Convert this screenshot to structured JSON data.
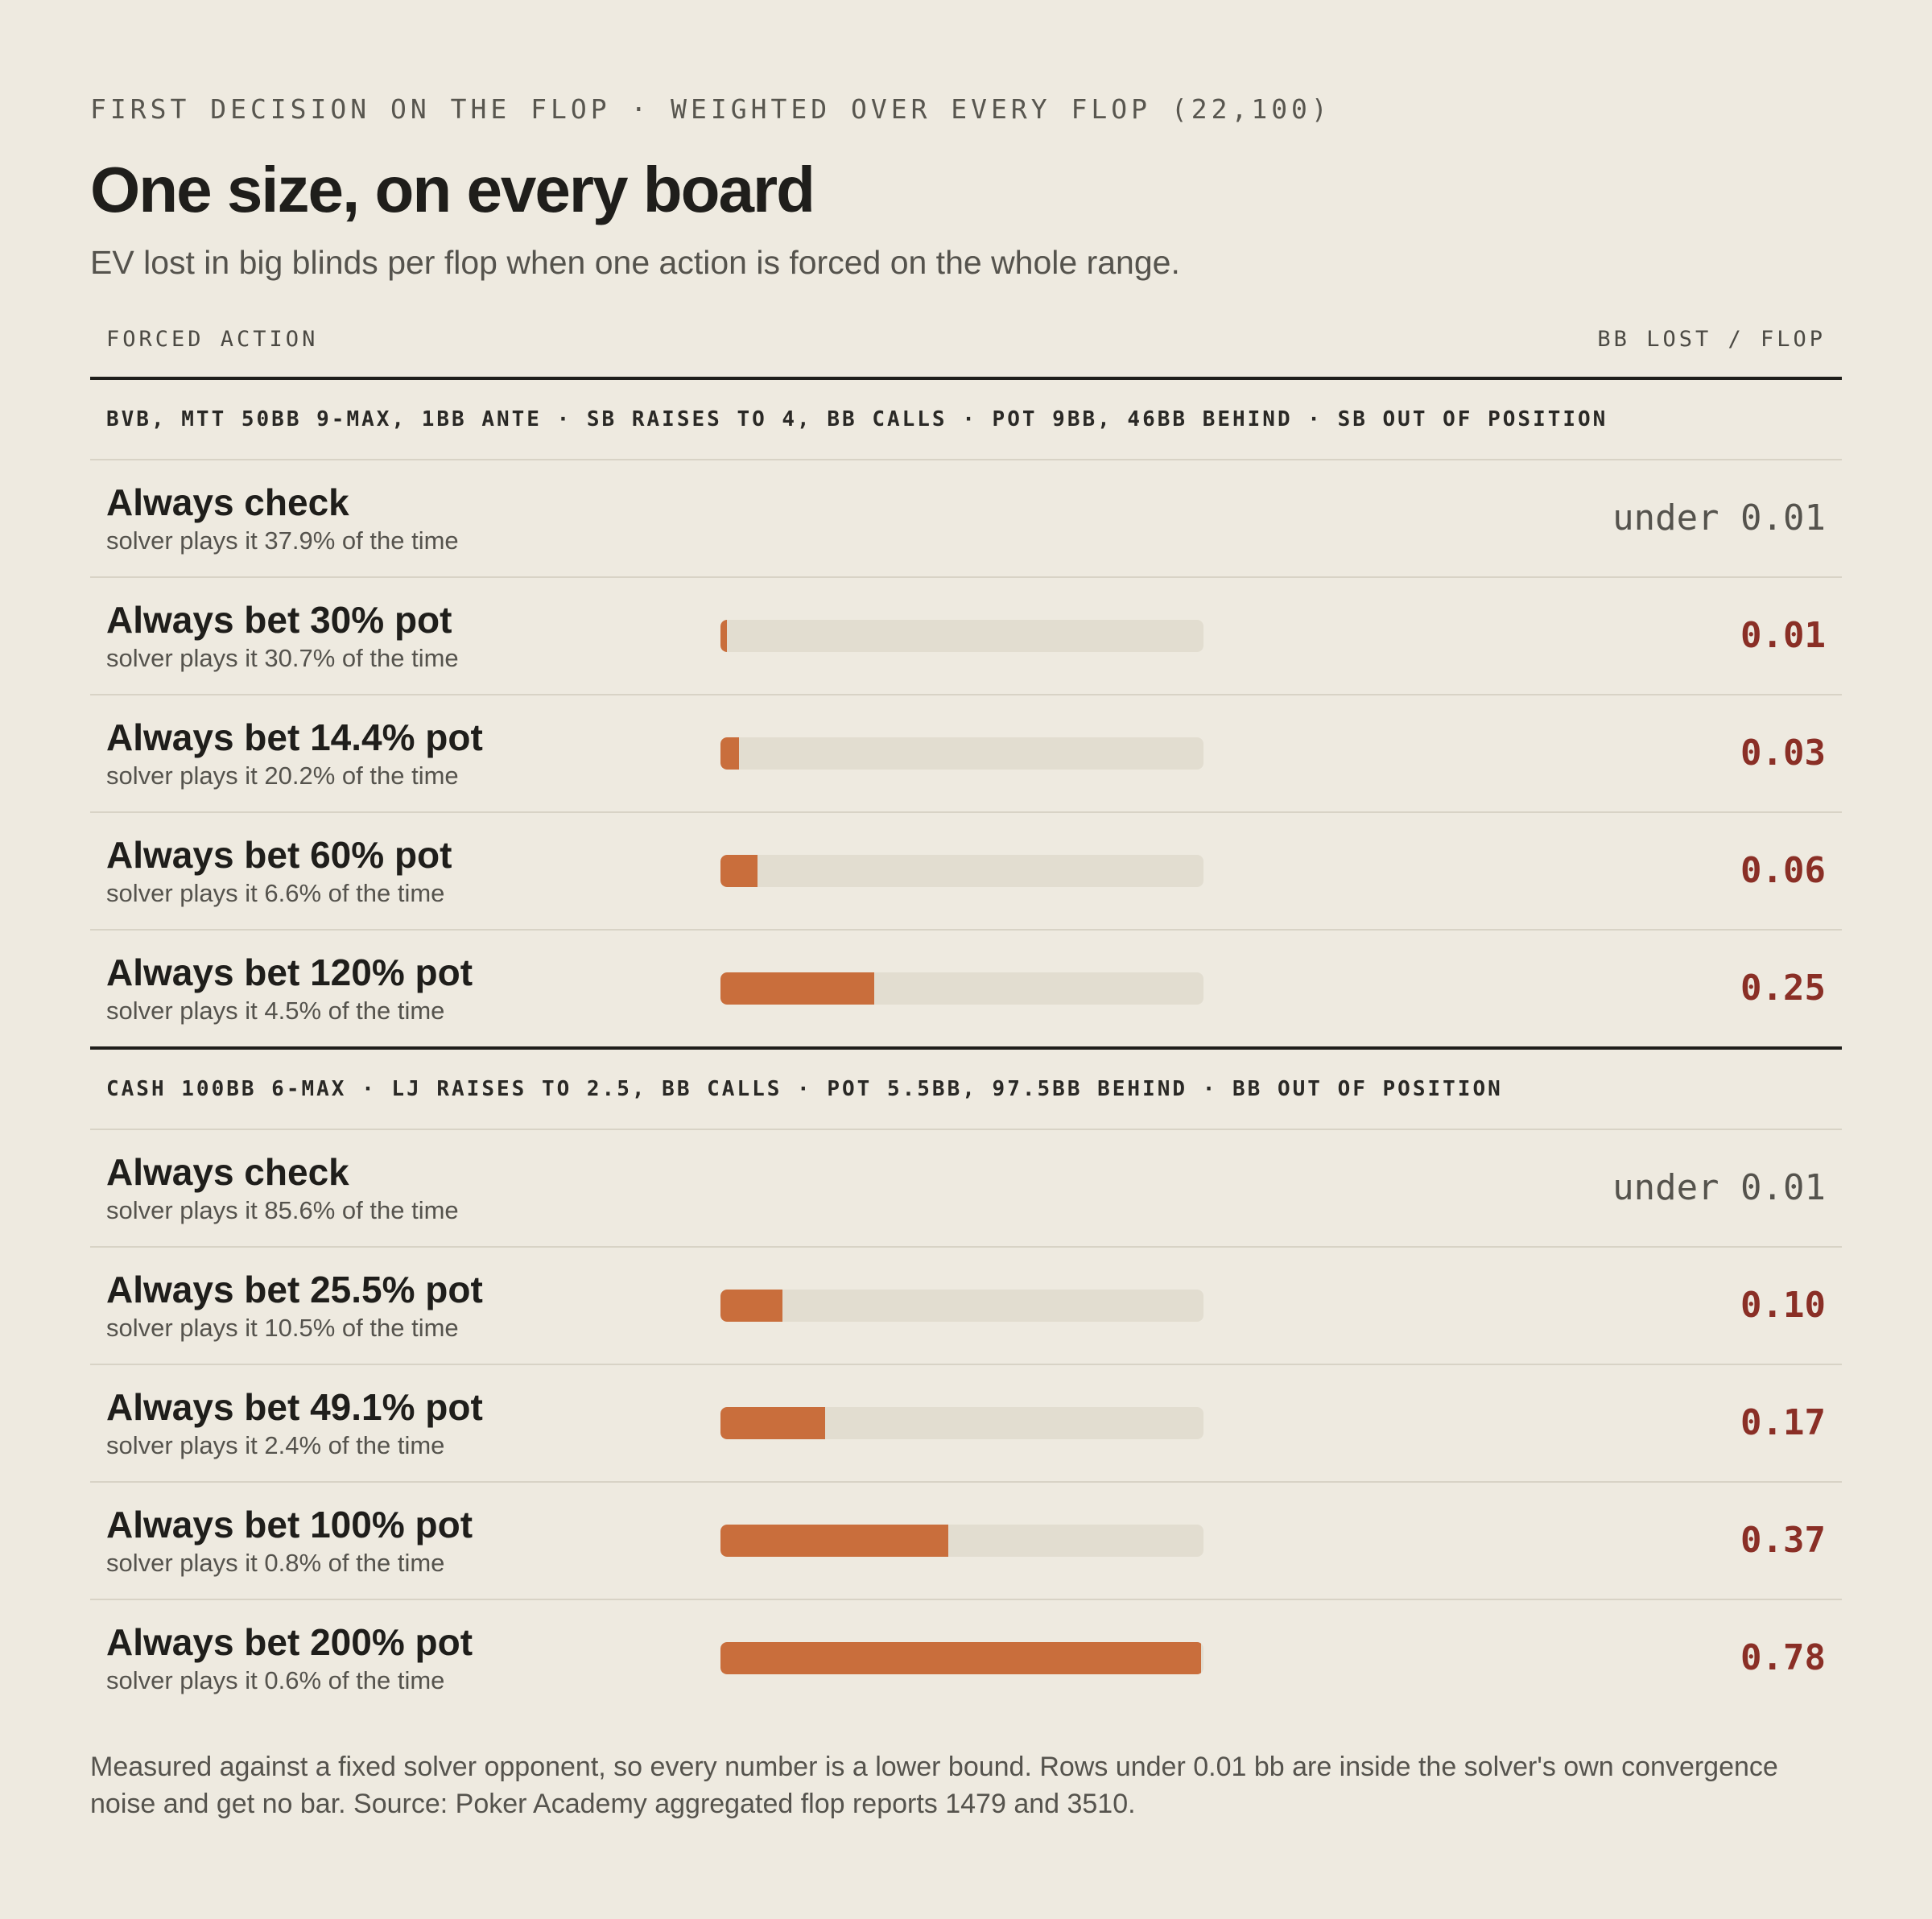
{
  "header": {
    "kicker": "FIRST DECISION ON THE FLOP · WEIGHTED OVER EVERY FLOP (22,100)",
    "title": "One size, on every board",
    "subtitle": "EV lost in big blinds per flop when one action is forced on the whole range."
  },
  "columns": {
    "left": "FORCED ACTION",
    "right": "BB LOST / FLOP"
  },
  "colors": {
    "bar": "#c96e3c",
    "track": "#e2ddd0",
    "value": "#8a2f26",
    "background": "#eeeae0"
  },
  "chart_data": {
    "type": "bar",
    "orientation": "horizontal",
    "xlim": [
      0,
      0.78
    ],
    "groups": [
      {
        "label": "BVB, MTT 50BB 9-MAX, 1BB ANTE · SB RAISES TO 4, BB CALLS · POT 9BB, 46BB BEHIND · SB OUT OF POSITION",
        "rows": [
          {
            "name": "Always check",
            "sub": "solver plays it 37.9% of the time",
            "value": 0,
            "display": "under 0.01",
            "bar": false
          },
          {
            "name": "Always bet 30% pot",
            "sub": "solver plays it 30.7% of the time",
            "value": 0.01,
            "display": "0.01",
            "bar": true
          },
          {
            "name": "Always bet 14.4% pot",
            "sub": "solver plays it 20.2% of the time",
            "value": 0.03,
            "display": "0.03",
            "bar": true
          },
          {
            "name": "Always bet 60% pot",
            "sub": "solver plays it 6.6% of the time",
            "value": 0.06,
            "display": "0.06",
            "bar": true
          },
          {
            "name": "Always bet 120% pot",
            "sub": "solver plays it 4.5% of the time",
            "value": 0.25,
            "display": "0.25",
            "bar": true
          }
        ]
      },
      {
        "label": "CASH 100BB 6-MAX · LJ RAISES TO 2.5, BB CALLS · POT 5.5BB, 97.5BB BEHIND · BB OUT OF POSITION",
        "rows": [
          {
            "name": "Always check",
            "sub": "solver plays it 85.6% of the time",
            "value": 0,
            "display": "under 0.01",
            "bar": false
          },
          {
            "name": "Always bet 25.5% pot",
            "sub": "solver plays it 10.5% of the time",
            "value": 0.1,
            "display": "0.10",
            "bar": true
          },
          {
            "name": "Always bet 49.1% pot",
            "sub": "solver plays it 2.4% of the time",
            "value": 0.17,
            "display": "0.17",
            "bar": true
          },
          {
            "name": "Always bet 100% pot",
            "sub": "solver plays it 0.8% of the time",
            "value": 0.37,
            "display": "0.37",
            "bar": true
          },
          {
            "name": "Always bet 200% pot",
            "sub": "solver plays it 0.6% of the time",
            "value": 0.78,
            "display": "0.78",
            "bar": true
          }
        ]
      }
    ]
  },
  "footnote": "Measured against a fixed solver opponent, so every number is a lower bound. Rows under 0.01 bb are inside the solver's own convergence noise and get no bar. Source: Poker Academy aggregated flop reports 1479 and 3510."
}
